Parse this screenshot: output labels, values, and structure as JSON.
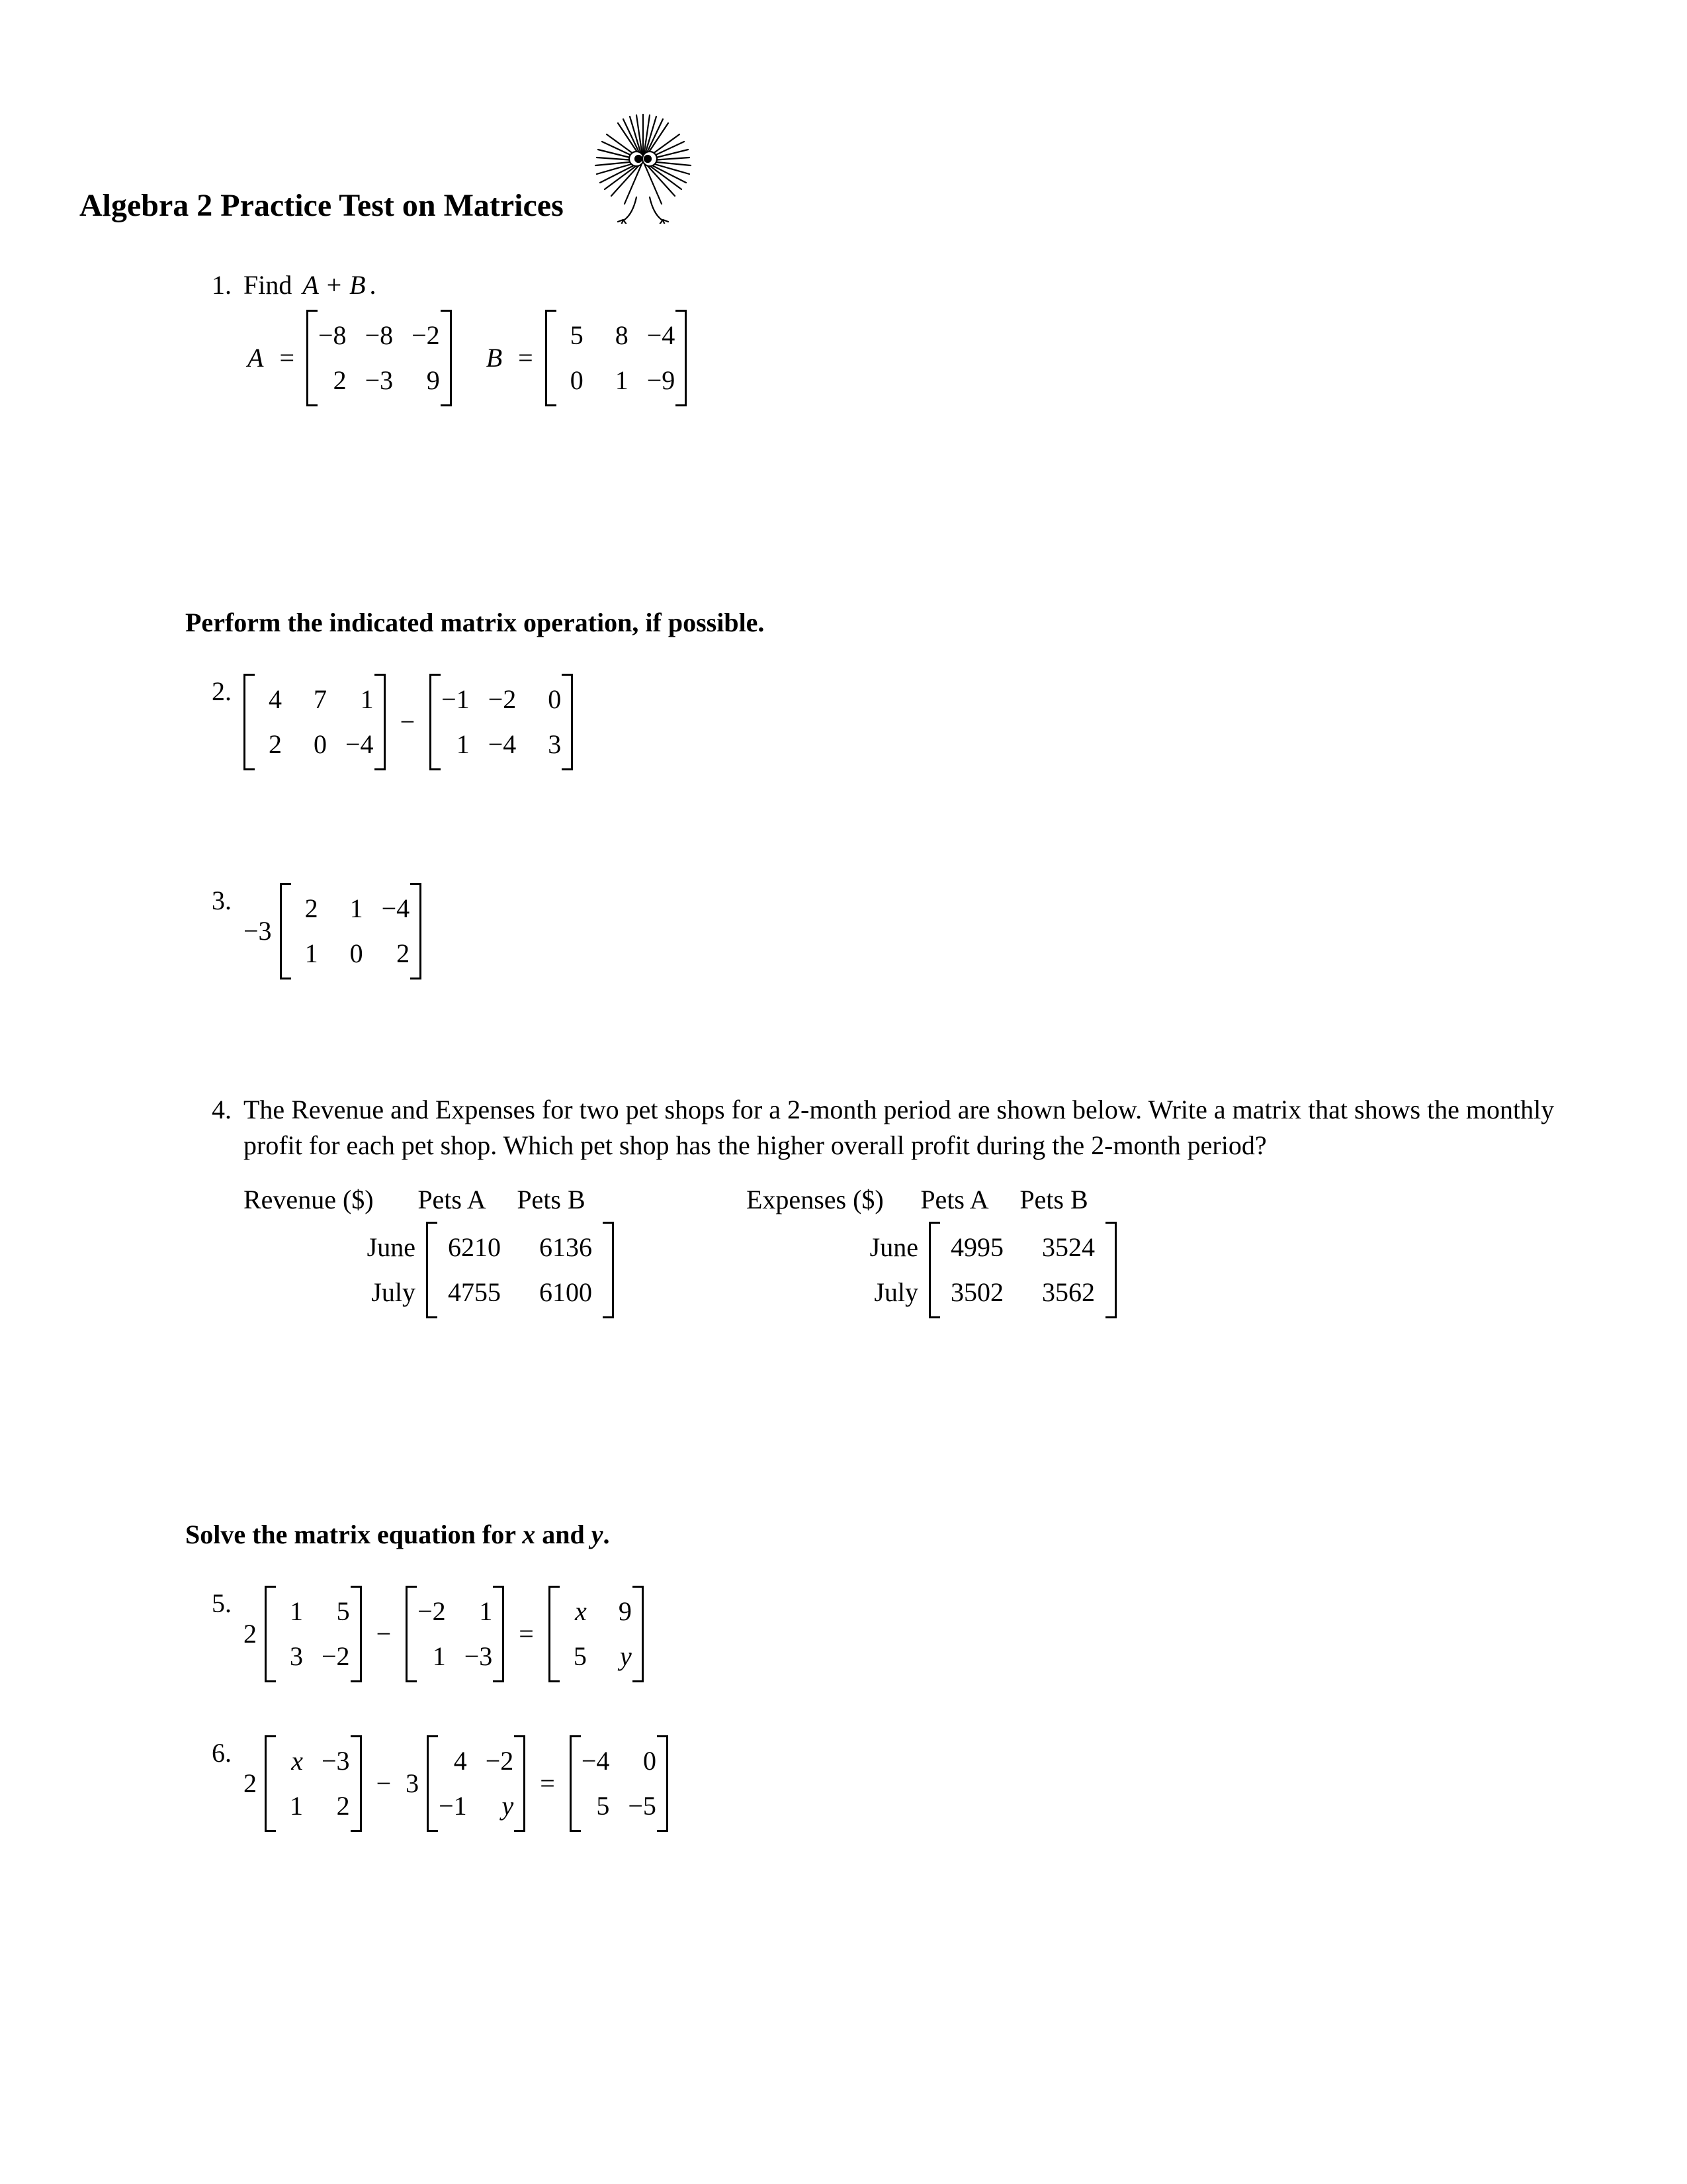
{
  "title": "Algebra 2 Practice Test on Matrices",
  "icon": {
    "name": "fuzzy-character-icon",
    "stroke": "#000000"
  },
  "font": {
    "body_pt": 40,
    "title_pt": 48,
    "family": "Times New Roman",
    "color": "#000000"
  },
  "background_color": "#ffffff",
  "p1": {
    "num": "1.",
    "text_prefix": "Find ",
    "text_expr": "A + B",
    "text_suffix": ".",
    "A_label": "A",
    "A": {
      "rows": [
        [
          "−8",
          "−8",
          "−2"
        ],
        [
          "2",
          "−3",
          "9"
        ]
      ]
    },
    "B_label": "B",
    "B": {
      "rows": [
        [
          "5",
          "8",
          "−4"
        ],
        [
          "0",
          "1",
          "−9"
        ]
      ]
    }
  },
  "sec1": "Perform the indicated matrix operation, if possible.",
  "p2": {
    "num": "2.",
    "M1": {
      "rows": [
        [
          "4",
          "7",
          "1"
        ],
        [
          "2",
          "0",
          "−4"
        ]
      ]
    },
    "op": "−",
    "M2": {
      "rows": [
        [
          "−1",
          "−2",
          "0"
        ],
        [
          "1",
          "−4",
          "3"
        ]
      ]
    }
  },
  "p3": {
    "num": "3.",
    "scalar": "−3",
    "M": {
      "rows": [
        [
          "2",
          "1",
          "−4"
        ],
        [
          "1",
          "0",
          "2"
        ]
      ]
    }
  },
  "p4": {
    "num": "4.",
    "text": "The Revenue and Expenses for two pet shops for a 2-month period are shown below. Write a matrix that shows the monthly profit for each pet shop. Which pet shop has the higher overall profit during the 2-month period?",
    "revenue": {
      "title": "Revenue ($)",
      "cols": [
        "Pets A",
        "Pets B"
      ],
      "row_labels": [
        "June",
        "July"
      ],
      "rows": [
        [
          "6210",
          "6136"
        ],
        [
          "4755",
          "6100"
        ]
      ]
    },
    "expenses": {
      "title": "Expenses ($)",
      "cols": [
        "Pets A",
        "Pets B"
      ],
      "row_labels": [
        "June",
        "July"
      ],
      "rows": [
        [
          "4995",
          "3524"
        ],
        [
          "3502",
          "3562"
        ]
      ]
    }
  },
  "sec2_prefix": "Solve the matrix equation for ",
  "sec2_x": "x",
  "sec2_mid": " and ",
  "sec2_y": "y",
  "sec2_suffix": ".",
  "p5": {
    "num": "5.",
    "s1": "2",
    "M1": {
      "rows": [
        [
          "1",
          "5"
        ],
        [
          "3",
          "−2"
        ]
      ]
    },
    "op": "−",
    "M2": {
      "rows": [
        [
          "−2",
          "1"
        ],
        [
          "1",
          "−3"
        ]
      ]
    },
    "eq": "=",
    "M3": {
      "rows": [
        [
          "x",
          "9"
        ],
        [
          "5",
          "y"
        ]
      ],
      "vars": [
        [
          true,
          false
        ],
        [
          false,
          true
        ]
      ]
    }
  },
  "p6": {
    "num": "6.",
    "s1": "2",
    "M1": {
      "rows": [
        [
          "x",
          "−3"
        ],
        [
          "1",
          "2"
        ]
      ],
      "vars": [
        [
          true,
          false
        ],
        [
          false,
          false
        ]
      ]
    },
    "op": "−",
    "s2": "3",
    "M2": {
      "rows": [
        [
          "4",
          "−2"
        ],
        [
          "−1",
          "y"
        ]
      ],
      "vars": [
        [
          false,
          false
        ],
        [
          false,
          true
        ]
      ]
    },
    "eq": "=",
    "M3": {
      "rows": [
        [
          "−4",
          "0"
        ],
        [
          "5",
          "−5"
        ]
      ]
    }
  }
}
